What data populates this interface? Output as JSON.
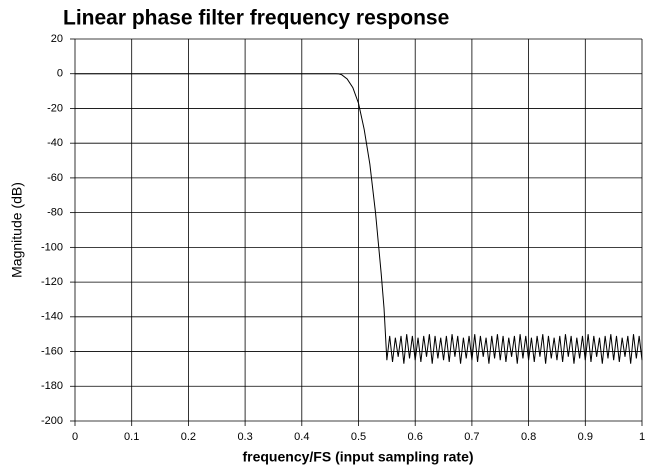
{
  "chart_data": {
    "type": "line",
    "title": "Linear phase filter frequency response",
    "x_label": "frequency/FS (input sampling rate)",
    "y_label": "Magnitude (dB)",
    "xlim": [
      0,
      1
    ],
    "xticks": [
      0,
      0.1,
      0.2,
      0.3,
      0.4,
      0.5,
      0.6,
      0.7,
      0.8,
      0.9,
      1
    ],
    "ylim": [
      -200,
      20
    ],
    "yticks": [
      -200,
      -180,
      -160,
      -140,
      -120,
      -100,
      -80,
      -60,
      -40,
      -20,
      0,
      20
    ],
    "grid": true,
    "x": [
      0,
      0.46,
      0.465,
      0.47,
      0.48,
      0.49,
      0.5,
      0.51,
      0.52,
      0.53,
      0.54,
      0.545,
      0.55,
      0.555,
      0.56,
      0.565,
      0.57,
      0.575,
      0.58,
      0.585,
      0.59,
      0.595,
      0.6,
      0.605,
      0.61,
      0.615,
      0.62,
      0.625,
      0.63,
      0.635,
      0.64,
      0.645,
      0.65,
      0.655,
      0.66,
      0.665,
      0.67,
      0.675,
      0.68,
      0.685,
      0.69,
      0.695,
      0.7,
      0.705,
      0.71,
      0.715,
      0.72,
      0.725,
      0.73,
      0.735,
      0.74,
      0.745,
      0.75,
      0.755,
      0.76,
      0.765,
      0.77,
      0.775,
      0.78,
      0.785,
      0.79,
      0.795,
      0.8,
      0.805,
      0.81,
      0.815,
      0.82,
      0.825,
      0.83,
      0.835,
      0.84,
      0.845,
      0.85,
      0.855,
      0.86,
      0.865,
      0.87,
      0.875,
      0.88,
      0.885,
      0.89,
      0.895,
      0.9,
      0.905,
      0.91,
      0.915,
      0.92,
      0.925,
      0.93,
      0.935,
      0.94,
      0.945,
      0.95,
      0.955,
      0.96,
      0.965,
      0.97,
      0.975,
      0.98,
      0.985,
      0.99,
      0.995,
      1
    ],
    "series": [
      {
        "color": "#000000",
        "values": [
          0,
          0,
          -0.1,
          -0.5,
          -3,
          -8,
          -17,
          -32,
          -52,
          -80,
          -115,
          -135,
          -165,
          -151,
          -166,
          -152,
          -163,
          -151,
          -167,
          -150,
          -164,
          -151,
          -165,
          -152,
          -166,
          -151,
          -163,
          -150,
          -167,
          -151,
          -164,
          -152,
          -165,
          -151,
          -166,
          -150,
          -163,
          -151,
          -167,
          -152,
          -164,
          -151,
          -165,
          -150,
          -166,
          -151,
          -163,
          -152,
          -167,
          -151,
          -164,
          -150,
          -165,
          -151,
          -166,
          -152,
          -163,
          -151,
          -167,
          -150,
          -164,
          -151,
          -165,
          -152,
          -166,
          -151,
          -163,
          -150,
          -167,
          -151,
          -164,
          -152,
          -165,
          -151,
          -166,
          -150,
          -163,
          -151,
          -167,
          -152,
          -164,
          -151,
          -165,
          -150,
          -166,
          -151,
          -163,
          -152,
          -167,
          -151,
          -164,
          -150,
          -165,
          -151,
          -166,
          -152,
          -163,
          -151,
          -167,
          -150,
          -164,
          -151,
          -165
        ]
      }
    ]
  }
}
